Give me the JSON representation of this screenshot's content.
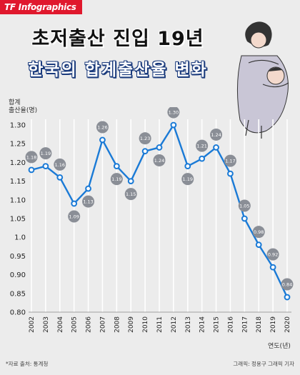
{
  "brand": "TF Infographics",
  "title_line1": "초저출산 진입 19년",
  "title_line2": "한국의 합계출산율 변화",
  "y_axis_label_line1": "합계",
  "y_axis_label_line2": "출산율(명)",
  "x_axis_unit": "연도(년)",
  "footer_source": "*자료 출처: 통계청",
  "footer_credit": "그래픽: 정용구 그래픽 기자",
  "chart_data": {
    "type": "line",
    "title": "한국의 합계출산율 변화",
    "xlabel": "연도(년)",
    "ylabel": "합계 출산율(명)",
    "ylim": [
      0.8,
      1.3
    ],
    "y_ticks": [
      "0.80",
      "0.85",
      "0.90",
      "0.95",
      "1.0",
      "1.05",
      "1.10",
      "1.15",
      "1.20",
      "1.25",
      "1.30"
    ],
    "categories": [
      "2002",
      "2003",
      "2004",
      "2005",
      "2006",
      "2007",
      "2008",
      "2009",
      "2010",
      "2011",
      "2012",
      "2013",
      "2014",
      "2015",
      "2016",
      "2017",
      "2018",
      "2019",
      "2020"
    ],
    "values": [
      1.18,
      1.19,
      1.16,
      1.09,
      1.13,
      1.26,
      1.19,
      1.15,
      1.23,
      1.24,
      1.3,
      1.19,
      1.21,
      1.24,
      1.17,
      1.05,
      0.98,
      0.92,
      0.84
    ],
    "labels": [
      "1.18",
      "1.19",
      "1.16",
      "1.09",
      "1.13",
      "1.26",
      "1.19",
      "1.15",
      "1.23",
      "1.24",
      "1.30",
      "1.19",
      "1.21",
      "1.24",
      "1.17",
      "1.05",
      "0.98",
      "0.92",
      "0.84"
    ],
    "label_side": [
      "above",
      "above",
      "above",
      "below",
      "below",
      "above",
      "below",
      "below",
      "above",
      "below",
      "above",
      "below",
      "above",
      "above",
      "above",
      "above",
      "above",
      "above",
      "above"
    ],
    "colors": {
      "line": "#1a7ad6",
      "bubble": "#8a8e96",
      "vertical_guide": "#ffffff"
    }
  }
}
